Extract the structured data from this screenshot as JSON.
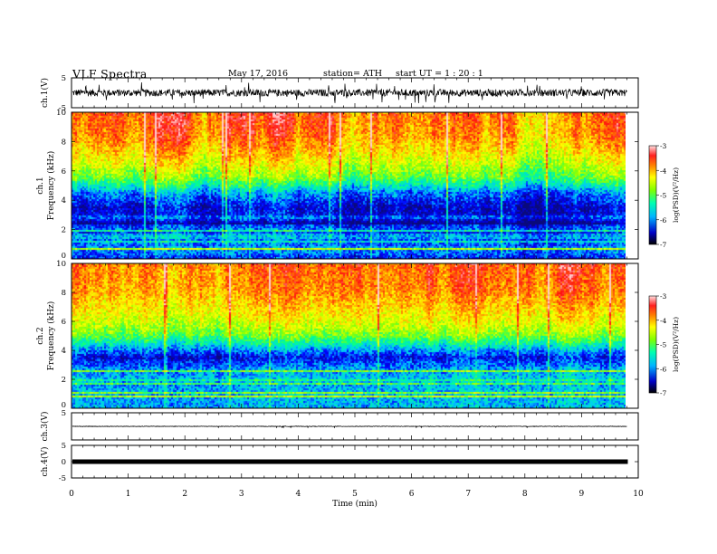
{
  "header": {
    "title": "VLF  Spectra",
    "date": "May 17, 2016",
    "station": "station= ATH",
    "start_ut": "start  UT  =   1  : 20 : 1"
  },
  "colors": {
    "spectrogram_stops": [
      "#0a0a7a",
      "#0000ff",
      "#00c8ff",
      "#00ff90",
      "#90ff00",
      "#ffff00",
      "#ff9000",
      "#ff1010",
      "#ffd0d0"
    ]
  },
  "chart_data": [
    {
      "type": "line",
      "panel": "ch1-waveform",
      "ylabel": "ch.1(V)",
      "ylim": [
        -5,
        5
      ],
      "yticks": [
        "5",
        "-5"
      ],
      "x_range_min": [
        0,
        9.8
      ],
      "baseline": 0,
      "amplitude_typical": 1.2,
      "amplitude_spikes": 3.5
    },
    {
      "type": "heatmap",
      "panel": "ch1-spectrogram",
      "ylabel_top": "ch.1",
      "ylabel": "Frequency  (kHz)",
      "ylim": [
        0,
        10
      ],
      "yticks": [
        "0",
        "2",
        "4",
        "6",
        "8",
        "10"
      ],
      "colorbar": {
        "label": "log(PSD)(V²/Hz)",
        "range": [
          -7,
          -3
        ],
        "ticks": [
          "-3",
          "-4",
          "-5",
          "-6",
          "-7"
        ]
      },
      "profile_khz_logpsd": [
        [
          0,
          -6.5
        ],
        [
          0.5,
          -6.2
        ],
        [
          1.5,
          -6.0
        ],
        [
          2.5,
          -6.6
        ],
        [
          3.5,
          -6.7
        ],
        [
          4.5,
          -6.2
        ],
        [
          5.5,
          -5.2
        ],
        [
          6.5,
          -4.7
        ],
        [
          7.5,
          -4.3
        ],
        [
          8.5,
          -4.0
        ],
        [
          9.5,
          -3.9
        ],
        [
          10,
          -3.9
        ]
      ]
    },
    {
      "type": "heatmap",
      "panel": "ch2-spectrogram",
      "ylabel_top": "ch.2",
      "ylabel": "Frequency  (kHz)",
      "ylim": [
        0,
        10
      ],
      "yticks": [
        "0",
        "2",
        "4",
        "6",
        "8",
        "10"
      ],
      "colorbar": {
        "label": "log(PSD)(V²/Hz)",
        "range": [
          -7,
          -3
        ],
        "ticks": [
          "-3",
          "-4",
          "-5",
          "-6",
          "-7"
        ]
      },
      "profile_khz_logpsd": [
        [
          0,
          -6.0
        ],
        [
          1,
          -6.0
        ],
        [
          2,
          -5.9
        ],
        [
          3,
          -6.2
        ],
        [
          3.5,
          -6.6
        ],
        [
          4.2,
          -5.9
        ],
        [
          5,
          -5.1
        ],
        [
          6,
          -4.6
        ],
        [
          7,
          -4.3
        ],
        [
          8,
          -4.0
        ],
        [
          9,
          -3.9
        ],
        [
          10,
          -3.8
        ]
      ]
    },
    {
      "type": "line",
      "panel": "ch3-waveform",
      "ylabel": "ch.3(V)",
      "ylim": [
        -5,
        5
      ],
      "yticks": [
        "5"
      ],
      "baseline": 0,
      "amplitude_typical": 0.1
    },
    {
      "type": "line",
      "panel": "ch4-waveform",
      "ylabel": "ch.4(V)",
      "ylim": [
        -5,
        5
      ],
      "yticks": [
        "5",
        "0",
        "-5"
      ],
      "baseline": 0,
      "amplitude_typical": 0.3
    },
    {
      "type": "axis",
      "xlabel": "Time  (min)",
      "xlim": [
        0,
        10
      ],
      "xticks": [
        "0",
        "1",
        "2",
        "3",
        "4",
        "5",
        "6",
        "7",
        "8",
        "9",
        "10"
      ]
    }
  ]
}
